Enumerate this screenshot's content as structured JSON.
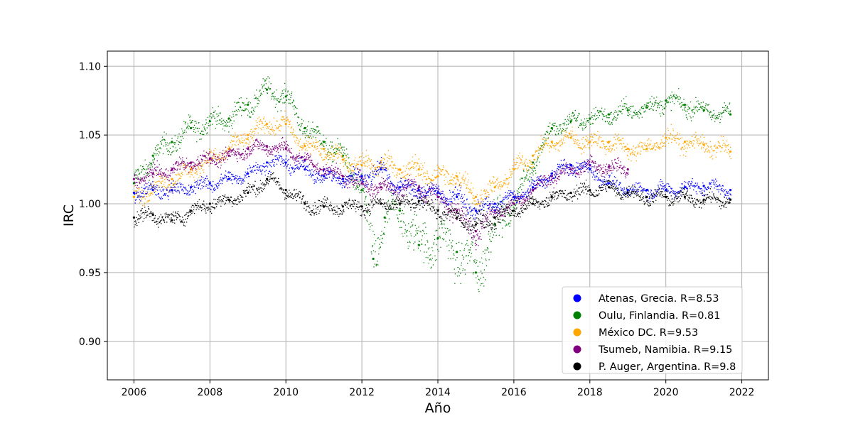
{
  "chart_data": {
    "type": "scatter",
    "xlabel": "Año",
    "ylabel": "IRC",
    "xlim": [
      2005.3,
      2022.7
    ],
    "ylim": [
      0.872,
      1.111
    ],
    "x_ticks": [
      2006,
      2008,
      2010,
      2012,
      2014,
      2016,
      2018,
      2020,
      2022
    ],
    "x_tick_labels": [
      "2006",
      "2008",
      "2010",
      "2012",
      "2014",
      "2016",
      "2018",
      "2020",
      "2022"
    ],
    "y_ticks": [
      0.9,
      0.95,
      1.0,
      1.05,
      1.1
    ],
    "y_tick_labels": [
      "0.90",
      "0.95",
      "1.00",
      "1.05",
      "1.10"
    ],
    "grid": true,
    "legend_position": "lower-right",
    "series": [
      {
        "name": "Oulu, Finlandia. R=0.81",
        "color": "#008000",
        "x": [
          2006.0,
          2006.5,
          2007.0,
          2007.5,
          2008.0,
          2008.5,
          2009.0,
          2009.5,
          2010.0,
          2010.5,
          2011.0,
          2011.5,
          2012.0,
          2012.3,
          2012.6,
          2013.0,
          2013.5,
          2014.0,
          2014.5,
          2015.0,
          2015.5,
          2016.0,
          2016.5,
          2017.0,
          2017.5,
          2018.0,
          2018.5,
          2019.0,
          2019.5,
          2020.0,
          2020.5,
          2021.0,
          2021.7
        ],
        "y": [
          1.015,
          1.035,
          1.045,
          1.055,
          1.06,
          1.062,
          1.072,
          1.083,
          1.078,
          1.055,
          1.045,
          1.035,
          1.01,
          0.96,
          0.99,
          0.995,
          0.97,
          0.975,
          0.965,
          0.95,
          0.985,
          1.0,
          1.03,
          1.055,
          1.06,
          1.062,
          1.065,
          1.068,
          1.07,
          1.075,
          1.072,
          1.068,
          1.065
        ],
        "spread": [
          0.012,
          0.012,
          0.012,
          0.012,
          0.012,
          0.012,
          0.012,
          0.012,
          0.012,
          0.012,
          0.012,
          0.012,
          0.015,
          0.03,
          0.02,
          0.02,
          0.025,
          0.025,
          0.025,
          0.03,
          0.025,
          0.012,
          0.012,
          0.01,
          0.01,
          0.01,
          0.01,
          0.01,
          0.01,
          0.01,
          0.01,
          0.01,
          0.01
        ]
      },
      {
        "name": "México DC. R=9.53",
        "color": "#ffa500",
        "x": [
          2006.0,
          2006.5,
          2007.0,
          2007.5,
          2008.0,
          2008.5,
          2009.0,
          2009.5,
          2010.0,
          2010.5,
          2011.0,
          2011.5,
          2012.0,
          2012.5,
          2013.0,
          2013.5,
          2014.0,
          2014.5,
          2015.0,
          2015.5,
          2016.0,
          2016.5,
          2017.0,
          2017.5,
          2018.0,
          2018.5,
          2019.0,
          2019.5,
          2020.0,
          2020.5,
          2021.0,
          2021.7
        ],
        "y": [
          1.005,
          1.012,
          1.018,
          1.025,
          1.032,
          1.04,
          1.05,
          1.058,
          1.058,
          1.042,
          1.04,
          1.032,
          1.028,
          1.03,
          1.025,
          1.025,
          1.02,
          1.02,
          1.005,
          1.012,
          1.025,
          1.035,
          1.045,
          1.048,
          1.045,
          1.045,
          1.04,
          1.04,
          1.048,
          1.045,
          1.043,
          1.038
        ],
        "spread": [
          0.01,
          0.01,
          0.01,
          0.01,
          0.01,
          0.01,
          0.01,
          0.01,
          0.01,
          0.01,
          0.01,
          0.01,
          0.012,
          0.012,
          0.012,
          0.012,
          0.012,
          0.012,
          0.012,
          0.01,
          0.01,
          0.01,
          0.01,
          0.01,
          0.01,
          0.01,
          0.01,
          0.01,
          0.01,
          0.01,
          0.01,
          0.01
        ]
      },
      {
        "name": "Tsumeb, Namibia. R=9.15",
        "color": "#800080",
        "x": [
          2006.0,
          2006.5,
          2007.0,
          2007.5,
          2008.0,
          2008.5,
          2009.0,
          2009.5,
          2010.0,
          2010.5,
          2011.0,
          2011.5,
          2012.0,
          2012.5,
          2013.0,
          2013.5,
          2014.0,
          2014.5,
          2015.0,
          2015.5,
          2016.0,
          2016.5,
          2017.0,
          2017.5,
          2018.0,
          2018.5,
          2019.0
        ],
        "y": [
          1.018,
          1.022,
          1.025,
          1.03,
          1.033,
          1.035,
          1.04,
          1.042,
          1.04,
          1.032,
          1.025,
          1.02,
          1.015,
          1.012,
          1.012,
          1.012,
          1.005,
          0.995,
          0.98,
          0.995,
          1.0,
          1.01,
          1.02,
          1.025,
          1.028,
          1.027,
          1.025
        ],
        "spread": [
          0.008,
          0.008,
          0.008,
          0.008,
          0.008,
          0.008,
          0.008,
          0.008,
          0.008,
          0.008,
          0.008,
          0.008,
          0.01,
          0.01,
          0.01,
          0.01,
          0.012,
          0.012,
          0.015,
          0.01,
          0.008,
          0.008,
          0.008,
          0.008,
          0.008,
          0.008,
          0.008
        ]
      },
      {
        "name": "Atenas, Grecia. R=8.53",
        "color": "#0000ff",
        "x": [
          2006.0,
          2006.5,
          2007.0,
          2007.5,
          2008.0,
          2008.5,
          2009.0,
          2009.5,
          2010.0,
          2010.5,
          2011.0,
          2011.5,
          2012.0,
          2012.5,
          2013.0,
          2013.5,
          2014.0,
          2014.5,
          2015.0,
          2015.5,
          2016.0,
          2016.5,
          2017.0,
          2017.5,
          2018.0,
          2018.5,
          2019.0,
          2019.5,
          2020.0,
          2020.5,
          2021.0,
          2021.7
        ],
        "y": [
          1.008,
          1.01,
          1.01,
          1.012,
          1.015,
          1.018,
          1.022,
          1.03,
          1.03,
          1.025,
          1.02,
          1.018,
          1.02,
          1.025,
          1.012,
          1.01,
          1.008,
          1.005,
          0.995,
          1.0,
          1.005,
          1.012,
          1.022,
          1.028,
          1.025,
          1.015,
          1.01,
          1.01,
          1.01,
          1.012,
          1.013,
          1.01
        ],
        "spread": [
          0.008,
          0.008,
          0.008,
          0.008,
          0.008,
          0.008,
          0.008,
          0.008,
          0.008,
          0.008,
          0.008,
          0.008,
          0.01,
          0.012,
          0.01,
          0.01,
          0.01,
          0.01,
          0.01,
          0.008,
          0.008,
          0.008,
          0.008,
          0.008,
          0.008,
          0.008,
          0.008,
          0.008,
          0.008,
          0.008,
          0.008,
          0.008
        ]
      },
      {
        "name": "P. Auger, Argentina. R=9.8",
        "color": "#000000",
        "x": [
          2006.0,
          2006.5,
          2007.0,
          2007.5,
          2008.0,
          2008.5,
          2009.0,
          2009.5,
          2010.0,
          2010.5,
          2011.0,
          2011.5,
          2012.0,
          2012.5,
          2013.0,
          2013.5,
          2014.0,
          2014.5,
          2015.0,
          2015.5,
          2016.0,
          2016.5,
          2017.0,
          2017.5,
          2018.0,
          2018.5,
          2019.0,
          2019.5,
          2020.0,
          2020.5,
          2021.0,
          2021.7
        ],
        "y": [
          0.99,
          0.992,
          0.988,
          0.995,
          1.0,
          1.003,
          1.008,
          1.018,
          1.01,
          1.0,
          0.998,
          0.998,
          0.998,
          1.0,
          1.0,
          1.002,
          0.995,
          0.99,
          0.985,
          0.99,
          0.995,
          1.0,
          1.005,
          1.008,
          1.01,
          1.012,
          1.008,
          1.005,
          1.005,
          1.005,
          1.003,
          1.003
        ],
        "spread": [
          0.008,
          0.008,
          0.008,
          0.008,
          0.008,
          0.008,
          0.008,
          0.008,
          0.008,
          0.008,
          0.008,
          0.008,
          0.008,
          0.008,
          0.008,
          0.008,
          0.01,
          0.01,
          0.012,
          0.01,
          0.008,
          0.008,
          0.008,
          0.008,
          0.008,
          0.008,
          0.008,
          0.008,
          0.008,
          0.008,
          0.008,
          0.008
        ]
      }
    ],
    "legend_order": [
      3,
      0,
      1,
      2,
      4
    ]
  }
}
